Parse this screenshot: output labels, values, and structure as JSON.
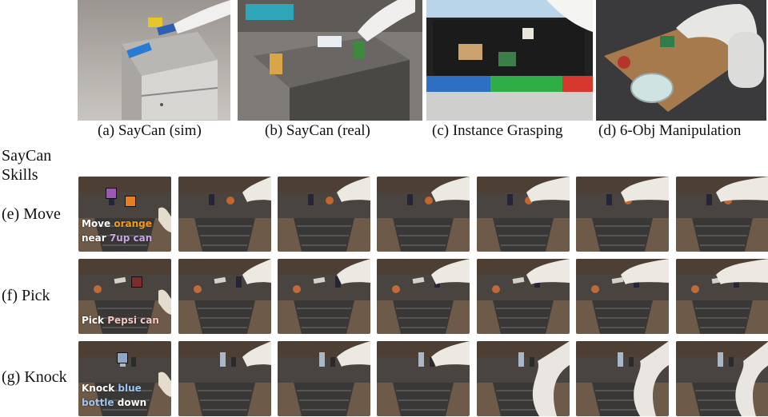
{
  "top_panels": [
    {
      "caption": "(a) SayCan (sim)"
    },
    {
      "caption": "(b) SayCan (real)"
    },
    {
      "caption": "(c) Instance Grasping"
    },
    {
      "caption": "(d) 6-Obj Manipulation"
    }
  ],
  "skills_header": {
    "line1": "SayCan",
    "line2": "Skills"
  },
  "rows": [
    {
      "label": "(e) Move",
      "instruction": [
        {
          "text": "Move ",
          "color": "#ffffff"
        },
        {
          "text": "orange",
          "color": "#f39c12"
        },
        {
          "text": "near ",
          "color": "#ffffff"
        },
        {
          "text": "7up can",
          "color": "#c9a6e8"
        }
      ],
      "markers": [
        "#9b59b6",
        "#e67e22"
      ]
    },
    {
      "label": "(f) Pick",
      "instruction": [
        {
          "text": "Pick ",
          "color": "#ffffff"
        },
        {
          "text": "Pepsi can",
          "color": "#f4c6c0"
        }
      ],
      "markers": [
        "#7b2d2d"
      ]
    },
    {
      "label": "(g) Knock",
      "instruction": [
        {
          "text": "Knock ",
          "color": "#ffffff"
        },
        {
          "text": "blue",
          "color": "#9cc4f0"
        },
        {
          "text": "bottle",
          "color": "#9cc4f0"
        },
        {
          "text": " down",
          "color": "#ffffff"
        }
      ],
      "markers": [
        "#8fa7c7"
      ]
    }
  ]
}
